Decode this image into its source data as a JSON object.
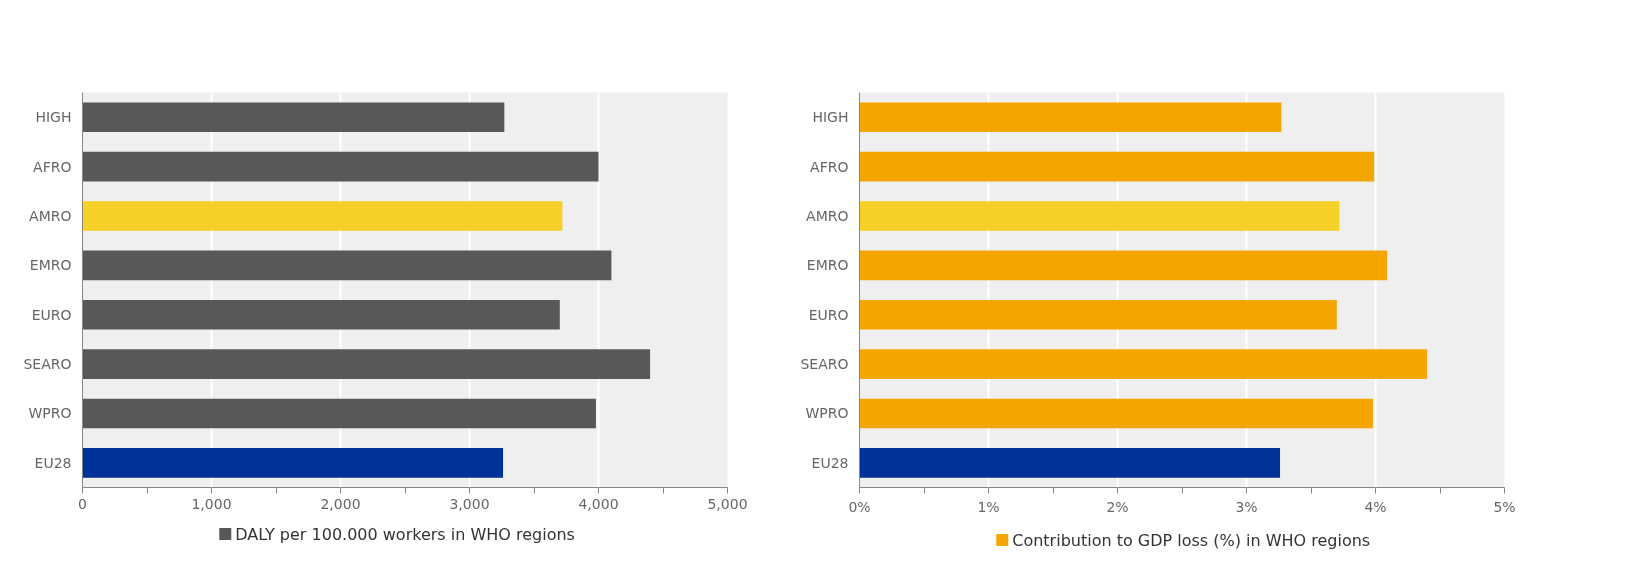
{
  "chart_data": [
    {
      "type": "bar",
      "orientation": "horizontal",
      "categories": [
        "HIGH",
        "AFRO",
        "AMRO",
        "EMRO",
        "EURO",
        "SEARO",
        "WPRO",
        "EU28"
      ],
      "series": [
        {
          "name": "DALY per 100.000 workers in WHO regions",
          "color": "#58585a",
          "colors": [
            "#58585a",
            "#58585a",
            "#f5d026",
            "#58585a",
            "#58585a",
            "#58585a",
            "#58585a",
            "#003399"
          ],
          "values": [
            3270,
            4000,
            3720,
            4100,
            3700,
            4400,
            3980,
            3260
          ]
        }
      ],
      "xlim": [
        0,
        5000
      ],
      "xticks": [
        0,
        {
          "value": 500,
          "label": null
        },
        {
          "value": 1000,
          "label": "1,000"
        },
        {
          "value": 1500,
          "label": null
        },
        {
          "value": 2000,
          "label": "2,000"
        },
        {
          "value": 2500,
          "label": null
        },
        {
          "value": 3000,
          "label": "3,000"
        },
        {
          "value": 3500,
          "label": null
        },
        {
          "value": 4000,
          "label": "4,000"
        },
        {
          "value": 4500,
          "label": null
        },
        {
          "value": 5000,
          "label": "5,000"
        }
      ],
      "grid": "x",
      "legend": "bottom"
    },
    {
      "type": "bar",
      "orientation": "horizontal",
      "categories": [
        "HIGH",
        "AFRO",
        "AMRO",
        "EMRO",
        "EURO",
        "SEARO",
        "WPRO",
        "EU28"
      ],
      "series": [
        {
          "name": "Contribution to GDP loss (%) in WHO regions",
          "color": "#f5a500",
          "colors": [
            "#f5a500",
            "#f5a500",
            "#f5d026",
            "#f5a500",
            "#f5a500",
            "#f5a500",
            "#f5a500",
            "#003399"
          ],
          "values": [
            3.27,
            3.99,
            3.72,
            4.09,
            3.7,
            4.4,
            3.98,
            3.26
          ]
        }
      ],
      "xlim": [
        0,
        5
      ],
      "xticks": [
        {
          "value": 0,
          "label": "0%"
        },
        {
          "value": 0.5,
          "label": null
        },
        {
          "value": 1,
          "label": "1%"
        },
        {
          "value": 1.5,
          "label": null
        },
        {
          "value": 2,
          "label": "2%"
        },
        {
          "value": 2.5,
          "label": null
        },
        {
          "value": 3,
          "label": "3%"
        },
        {
          "value": 3.5,
          "label": null
        },
        {
          "value": 4,
          "label": "4%"
        },
        {
          "value": 4.5,
          "label": null
        },
        {
          "value": 5,
          "label": "5%"
        }
      ],
      "grid": "x",
      "legend": "bottom"
    }
  ]
}
